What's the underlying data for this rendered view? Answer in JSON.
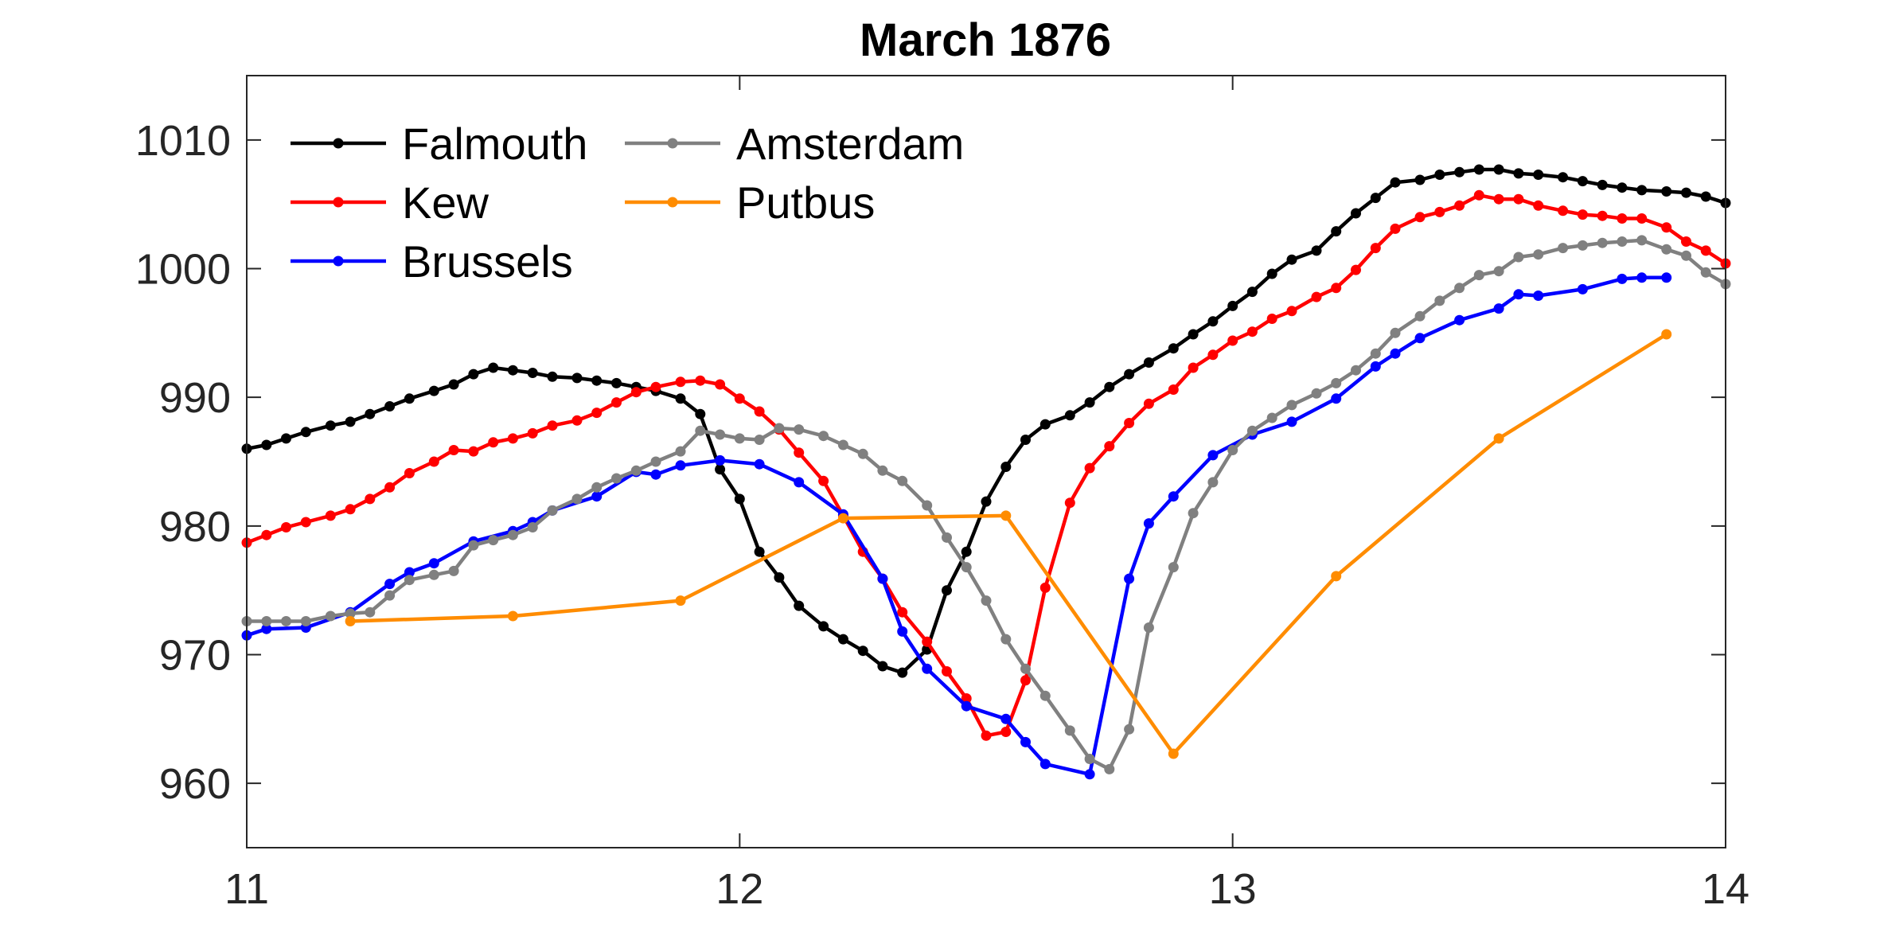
{
  "chart_data": {
    "type": "line",
    "title": "March 1876",
    "xlabel": "",
    "ylabel": "",
    "xlim": [
      11,
      14
    ],
    "ylim": [
      955,
      1015
    ],
    "xticks": [
      11,
      12,
      13,
      14
    ],
    "yticks": [
      960,
      970,
      980,
      990,
      1000,
      1010
    ],
    "grid": false,
    "legend_position": "top-left",
    "series": [
      {
        "name": "Falmouth",
        "color": "#000000",
        "points": [
          [
            11.0,
            986.0
          ],
          [
            11.04,
            986.3
          ],
          [
            11.08,
            986.8
          ],
          [
            11.12,
            987.3
          ],
          [
            11.17,
            987.8
          ],
          [
            11.21,
            988.1
          ],
          [
            11.25,
            988.7
          ],
          [
            11.29,
            989.3
          ],
          [
            11.33,
            989.9
          ],
          [
            11.38,
            990.5
          ],
          [
            11.42,
            991.0
          ],
          [
            11.46,
            991.8
          ],
          [
            11.5,
            992.3
          ],
          [
            11.54,
            992.1
          ],
          [
            11.58,
            991.9
          ],
          [
            11.62,
            991.6
          ],
          [
            11.67,
            991.5
          ],
          [
            11.71,
            991.3
          ],
          [
            11.75,
            991.1
          ],
          [
            11.79,
            990.8
          ],
          [
            11.83,
            990.5
          ],
          [
            11.88,
            989.9
          ],
          [
            11.92,
            988.7
          ],
          [
            11.96,
            984.4
          ],
          [
            12.0,
            982.1
          ],
          [
            12.04,
            978.0
          ],
          [
            12.08,
            976.0
          ],
          [
            12.12,
            973.8
          ],
          [
            12.17,
            972.2
          ],
          [
            12.21,
            971.2
          ],
          [
            12.25,
            970.3
          ],
          [
            12.29,
            969.1
          ],
          [
            12.33,
            968.6
          ],
          [
            12.38,
            970.4
          ],
          [
            12.42,
            975.0
          ],
          [
            12.46,
            978.0
          ],
          [
            12.5,
            981.9
          ],
          [
            12.54,
            984.6
          ],
          [
            12.58,
            986.7
          ],
          [
            12.62,
            987.9
          ],
          [
            12.67,
            988.6
          ],
          [
            12.71,
            989.6
          ],
          [
            12.75,
            990.8
          ],
          [
            12.79,
            991.8
          ],
          [
            12.83,
            992.7
          ],
          [
            12.88,
            993.8
          ],
          [
            12.92,
            994.9
          ],
          [
            12.96,
            995.9
          ],
          [
            13.0,
            997.1
          ],
          [
            13.04,
            998.2
          ],
          [
            13.08,
            999.6
          ],
          [
            13.12,
            1000.7
          ],
          [
            13.17,
            1001.4
          ],
          [
            13.21,
            1002.9
          ],
          [
            13.25,
            1004.3
          ],
          [
            13.29,
            1005.5
          ],
          [
            13.33,
            1006.7
          ],
          [
            13.38,
            1006.9
          ],
          [
            13.42,
            1007.3
          ],
          [
            13.46,
            1007.5
          ],
          [
            13.5,
            1007.7
          ],
          [
            13.54,
            1007.7
          ],
          [
            13.58,
            1007.4
          ],
          [
            13.62,
            1007.3
          ],
          [
            13.67,
            1007.1
          ],
          [
            13.71,
            1006.8
          ],
          [
            13.75,
            1006.5
          ],
          [
            13.79,
            1006.3
          ],
          [
            13.83,
            1006.1
          ],
          [
            13.88,
            1006.0
          ],
          [
            13.92,
            1005.9
          ],
          [
            13.96,
            1005.6
          ],
          [
            14.0,
            1005.1
          ]
        ]
      },
      {
        "name": "Kew",
        "color": "#ff0000",
        "points": [
          [
            11.0,
            978.7
          ],
          [
            11.04,
            979.3
          ],
          [
            11.08,
            979.9
          ],
          [
            11.12,
            980.3
          ],
          [
            11.17,
            980.8
          ],
          [
            11.21,
            981.3
          ],
          [
            11.25,
            982.1
          ],
          [
            11.29,
            983.0
          ],
          [
            11.33,
            984.1
          ],
          [
            11.38,
            985.0
          ],
          [
            11.42,
            985.9
          ],
          [
            11.46,
            985.8
          ],
          [
            11.5,
            986.5
          ],
          [
            11.54,
            986.8
          ],
          [
            11.58,
            987.2
          ],
          [
            11.62,
            987.8
          ],
          [
            11.67,
            988.2
          ],
          [
            11.71,
            988.8
          ],
          [
            11.75,
            989.6
          ],
          [
            11.79,
            990.4
          ],
          [
            11.83,
            990.8
          ],
          [
            11.88,
            991.2
          ],
          [
            11.92,
            991.3
          ],
          [
            11.96,
            991.0
          ],
          [
            12.0,
            989.9
          ],
          [
            12.04,
            988.9
          ],
          [
            12.08,
            987.5
          ],
          [
            12.12,
            985.7
          ],
          [
            12.17,
            983.5
          ],
          [
            12.21,
            980.8
          ],
          [
            12.25,
            978.0
          ],
          [
            12.29,
            975.9
          ],
          [
            12.33,
            973.3
          ],
          [
            12.38,
            971.0
          ],
          [
            12.42,
            968.7
          ],
          [
            12.46,
            966.6
          ],
          [
            12.5,
            963.7
          ],
          [
            12.54,
            964.0
          ],
          [
            12.58,
            968.0
          ],
          [
            12.62,
            975.2
          ],
          [
            12.67,
            981.8
          ],
          [
            12.71,
            984.5
          ],
          [
            12.75,
            986.2
          ],
          [
            12.79,
            988.0
          ],
          [
            12.83,
            989.5
          ],
          [
            12.88,
            990.6
          ],
          [
            12.92,
            992.3
          ],
          [
            12.96,
            993.3
          ],
          [
            13.0,
            994.4
          ],
          [
            13.04,
            995.1
          ],
          [
            13.08,
            996.1
          ],
          [
            13.12,
            996.7
          ],
          [
            13.17,
            997.8
          ],
          [
            13.21,
            998.5
          ],
          [
            13.25,
            999.9
          ],
          [
            13.29,
            1001.6
          ],
          [
            13.33,
            1003.1
          ],
          [
            13.38,
            1004.0
          ],
          [
            13.42,
            1004.4
          ],
          [
            13.46,
            1004.9
          ],
          [
            13.5,
            1005.7
          ],
          [
            13.54,
            1005.4
          ],
          [
            13.58,
            1005.4
          ],
          [
            13.62,
            1004.9
          ],
          [
            13.67,
            1004.5
          ],
          [
            13.71,
            1004.2
          ],
          [
            13.75,
            1004.1
          ],
          [
            13.79,
            1003.9
          ],
          [
            13.83,
            1003.9
          ],
          [
            13.88,
            1003.2
          ],
          [
            13.92,
            1002.1
          ],
          [
            13.96,
            1001.4
          ],
          [
            14.0,
            1000.4
          ]
        ]
      },
      {
        "name": "Brussels",
        "color": "#0000ff",
        "points": [
          [
            11.0,
            971.5
          ],
          [
            11.04,
            972.0
          ],
          [
            11.12,
            972.1
          ],
          [
            11.21,
            973.3
          ],
          [
            11.29,
            975.5
          ],
          [
            11.33,
            976.4
          ],
          [
            11.38,
            977.1
          ],
          [
            11.46,
            978.8
          ],
          [
            11.54,
            979.6
          ],
          [
            11.58,
            980.3
          ],
          [
            11.62,
            981.2
          ],
          [
            11.71,
            982.3
          ],
          [
            11.79,
            984.2
          ],
          [
            11.83,
            984.0
          ],
          [
            11.88,
            984.7
          ],
          [
            11.96,
            985.1
          ],
          [
            12.04,
            984.8
          ],
          [
            12.12,
            983.4
          ],
          [
            12.21,
            980.9
          ],
          [
            12.29,
            975.9
          ],
          [
            12.33,
            971.8
          ],
          [
            12.38,
            968.9
          ],
          [
            12.46,
            966.0
          ],
          [
            12.54,
            965.0
          ],
          [
            12.58,
            963.2
          ],
          [
            12.62,
            961.5
          ],
          [
            12.71,
            960.7
          ],
          [
            12.79,
            975.9
          ],
          [
            12.83,
            980.2
          ],
          [
            12.88,
            982.3
          ],
          [
            12.96,
            985.5
          ],
          [
            13.04,
            987.1
          ],
          [
            13.12,
            988.1
          ],
          [
            13.21,
            989.9
          ],
          [
            13.29,
            992.4
          ],
          [
            13.33,
            993.4
          ],
          [
            13.38,
            994.6
          ],
          [
            13.46,
            996.0
          ],
          [
            13.54,
            996.9
          ],
          [
            13.58,
            998.0
          ],
          [
            13.62,
            997.9
          ],
          [
            13.71,
            998.4
          ],
          [
            13.79,
            999.2
          ],
          [
            13.83,
            999.3
          ],
          [
            13.88,
            999.3
          ]
        ]
      },
      {
        "name": "Amsterdam",
        "color": "#808080",
        "points": [
          [
            11.0,
            972.6
          ],
          [
            11.04,
            972.6
          ],
          [
            11.08,
            972.6
          ],
          [
            11.12,
            972.6
          ],
          [
            11.17,
            973.0
          ],
          [
            11.21,
            973.2
          ],
          [
            11.25,
            973.3
          ],
          [
            11.29,
            974.6
          ],
          [
            11.33,
            975.8
          ],
          [
            11.38,
            976.2
          ],
          [
            11.42,
            976.5
          ],
          [
            11.46,
            978.5
          ],
          [
            11.5,
            978.9
          ],
          [
            11.54,
            979.3
          ],
          [
            11.58,
            979.9
          ],
          [
            11.62,
            981.2
          ],
          [
            11.67,
            982.1
          ],
          [
            11.71,
            983.0
          ],
          [
            11.75,
            983.7
          ],
          [
            11.79,
            984.3
          ],
          [
            11.83,
            985.0
          ],
          [
            11.88,
            985.8
          ],
          [
            11.92,
            987.4
          ],
          [
            11.96,
            987.1
          ],
          [
            12.0,
            986.8
          ],
          [
            12.04,
            986.7
          ],
          [
            12.08,
            987.6
          ],
          [
            12.12,
            987.5
          ],
          [
            12.17,
            987.0
          ],
          [
            12.21,
            986.3
          ],
          [
            12.25,
            985.6
          ],
          [
            12.29,
            984.3
          ],
          [
            12.33,
            983.5
          ],
          [
            12.38,
            981.6
          ],
          [
            12.42,
            979.1
          ],
          [
            12.46,
            976.8
          ],
          [
            12.5,
            974.2
          ],
          [
            12.54,
            971.2
          ],
          [
            12.58,
            968.9
          ],
          [
            12.62,
            966.8
          ],
          [
            12.67,
            964.1
          ],
          [
            12.71,
            961.9
          ],
          [
            12.75,
            961.1
          ],
          [
            12.79,
            964.2
          ],
          [
            12.83,
            972.1
          ],
          [
            12.88,
            976.8
          ],
          [
            12.92,
            981.0
          ],
          [
            12.96,
            983.4
          ],
          [
            13.0,
            985.9
          ],
          [
            13.04,
            987.4
          ],
          [
            13.08,
            988.4
          ],
          [
            13.12,
            989.4
          ],
          [
            13.17,
            990.3
          ],
          [
            13.21,
            991.1
          ],
          [
            13.25,
            992.1
          ],
          [
            13.29,
            993.4
          ],
          [
            13.33,
            995.0
          ],
          [
            13.38,
            996.3
          ],
          [
            13.42,
            997.5
          ],
          [
            13.46,
            998.5
          ],
          [
            13.5,
            999.5
          ],
          [
            13.54,
            999.8
          ],
          [
            13.58,
            1000.9
          ],
          [
            13.62,
            1001.1
          ],
          [
            13.67,
            1001.6
          ],
          [
            13.71,
            1001.8
          ],
          [
            13.75,
            1002.0
          ],
          [
            13.79,
            1002.1
          ],
          [
            13.83,
            1002.2
          ],
          [
            13.88,
            1001.5
          ],
          [
            13.92,
            1001.0
          ],
          [
            13.96,
            999.7
          ],
          [
            14.0,
            998.8
          ]
        ]
      },
      {
        "name": "Putbus",
        "color": "#ff8c00",
        "points": [
          [
            11.21,
            972.6
          ],
          [
            11.54,
            973.0
          ],
          [
            11.88,
            974.2
          ],
          [
            12.21,
            980.6
          ],
          [
            12.54,
            980.8
          ],
          [
            12.88,
            962.3
          ],
          [
            13.21,
            976.1
          ],
          [
            13.54,
            986.8
          ],
          [
            13.88,
            994.9
          ]
        ]
      }
    ]
  }
}
